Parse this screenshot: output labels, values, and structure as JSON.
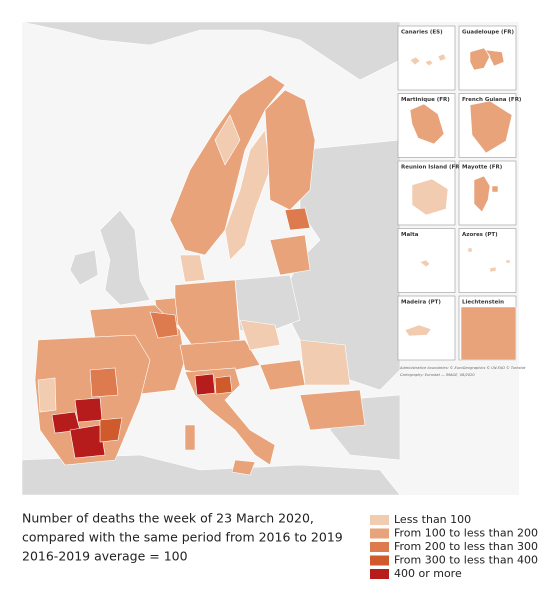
{
  "map": {
    "insets": [
      "Canaries (ES)",
      "Guadeloupe (FR)",
      "Martinique (FR)",
      "French Guiana (FR)",
      "Reunion Island (FR)",
      "Mayotte (FR)",
      "Malta",
      "Azores (PT)",
      "Madeira (PT)",
      "Liechtenstein"
    ],
    "attribution": [
      "Administrative boundaries: © EuroGeographics © UN-FAO © Turkstat",
      "Cartography: Eurostat — IMAGE, 06/2020"
    ]
  },
  "caption": [
    "Number of deaths the week of 23 March 2020,",
    "compared with the same period from 2016 to 2019",
    "2016-2019 average = 100"
  ],
  "legend": [
    {
      "name": "Less than 100",
      "color": "#f2ccb0"
    },
    {
      "name": "From 100 to less than 200",
      "color": "#e8a37a"
    },
    {
      "name": "From 200 to less than 300",
      "color": "#dd7b4f"
    },
    {
      "name": "From 300 to less than 400",
      "color": "#cf5a2b"
    },
    {
      "name": "400 or more",
      "color": "#b71c1c"
    }
  ]
}
